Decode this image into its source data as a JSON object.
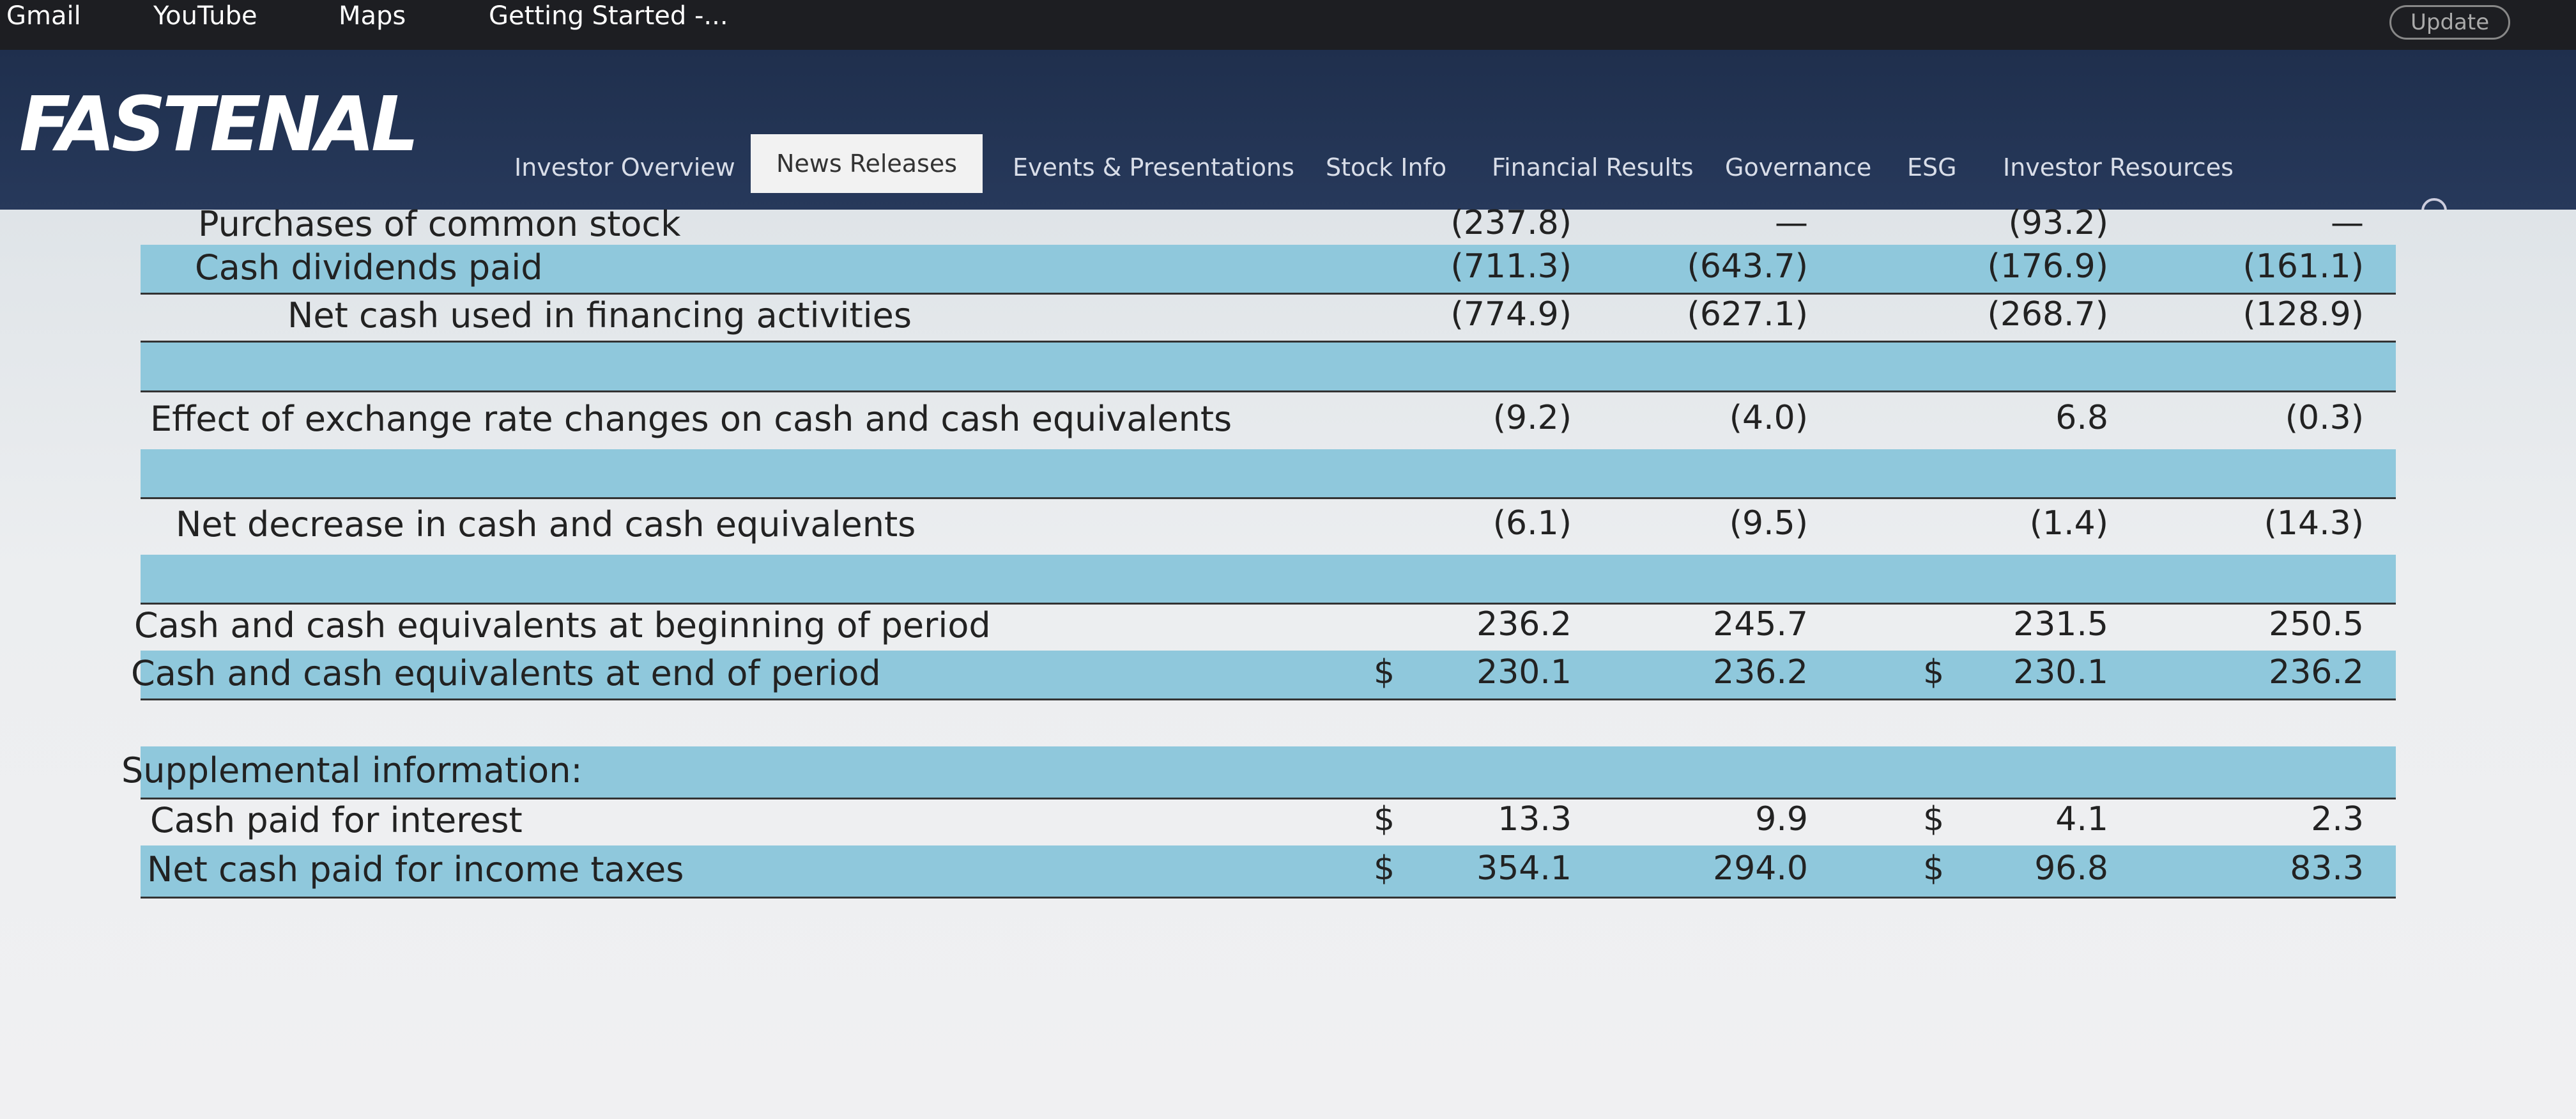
{
  "bookmarks": [
    "Gmail",
    "YouTube",
    "Maps",
    "Getting Started -..."
  ],
  "update_button": "Update",
  "logo": "FASTENAL",
  "nav": [
    "Investor Overview",
    "News Releases",
    "Events & Presentations",
    "Stock Info",
    "Financial Results",
    "Governance",
    "ESG",
    "Investor Resources"
  ],
  "table": {
    "rows": [
      {
        "label": "Purchases of common stock",
        "values": [
          "(237.8)",
          "—",
          "(93.2)",
          "—"
        ]
      },
      {
        "label": "Cash dividends paid",
        "values": [
          "(711.3)",
          "(643.7)",
          "(176.9)",
          "(161.1)"
        ]
      },
      {
        "label": "Net cash used in financing activities",
        "values": [
          "(774.9)",
          "(627.1)",
          "(268.7)",
          "(128.9)"
        ]
      },
      {
        "label": "Effect of exchange rate changes on cash and cash equivalents",
        "values": [
          "(9.2)",
          "(4.0)",
          "6.8",
          "(0.3)"
        ]
      },
      {
        "label": "Net decrease in cash and cash equivalents",
        "values": [
          "(6.1)",
          "(9.5)",
          "(1.4)",
          "(14.3)"
        ]
      },
      {
        "label": "Cash and cash equivalents at beginning of period",
        "values": [
          "236.2",
          "245.7",
          "231.5",
          "250.5"
        ]
      },
      {
        "label": "Cash and cash equivalents at end of period",
        "currency": "$",
        "values": [
          "230.1",
          "236.2",
          "230.1",
          "236.2"
        ]
      },
      {
        "label": "Supplemental information:"
      },
      {
        "label": "Cash paid for interest",
        "currency": "$",
        "values": [
          "13.3",
          "9.9",
          "4.1",
          "2.3"
        ]
      },
      {
        "label": "Net cash paid for income taxes",
        "currency": "$",
        "values": [
          "354.1",
          "294.0",
          "96.8",
          "83.3"
        ]
      }
    ]
  }
}
